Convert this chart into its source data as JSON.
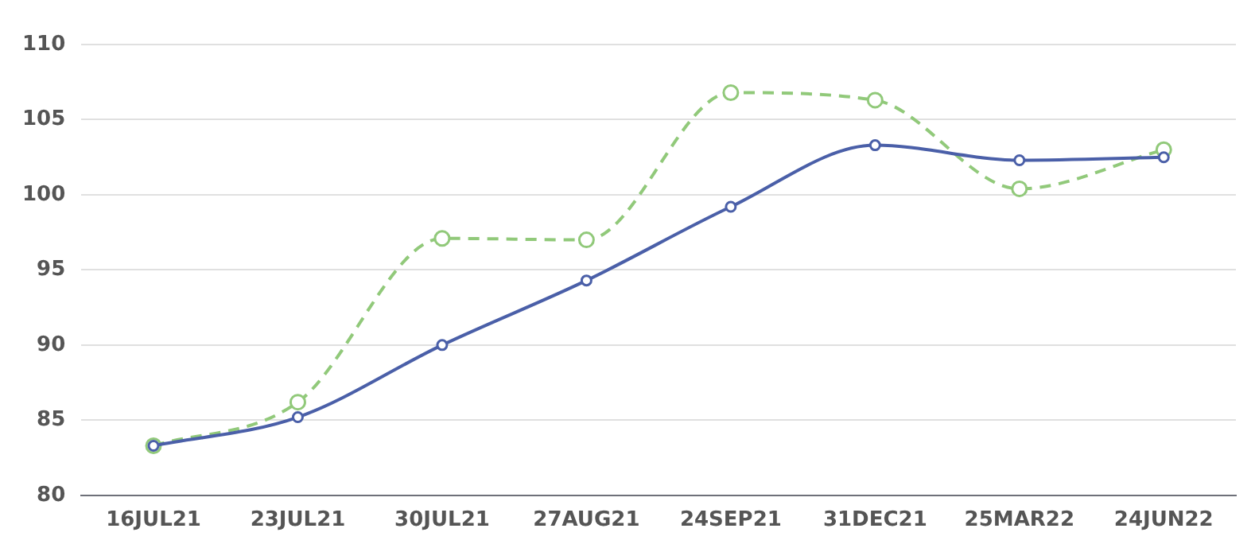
{
  "chart_data": {
    "type": "line",
    "categories": [
      "16JUL21",
      "23JUL21",
      "30JUL21",
      "27AUG21",
      "24SEP21",
      "31DEC21",
      "25MAR22",
      "24JUN22"
    ],
    "series": [
      {
        "color": "#4a5fa8",
        "values": [
          83.3,
          85.2,
          90.0,
          94.3,
          99.2,
          103.3,
          102.3,
          102.5
        ],
        "line_style": "solid"
      },
      {
        "color": "#91c97a",
        "values": [
          83.3,
          86.2,
          97.1,
          97.0,
          106.8,
          106.3,
          100.4,
          103.0
        ],
        "line_style": "dashed"
      }
    ],
    "ylim": [
      80,
      110
    ],
    "yticks": [
      80,
      85,
      90,
      95,
      100,
      105,
      110
    ],
    "grid": "y",
    "legend": false,
    "marker": "circle"
  }
}
